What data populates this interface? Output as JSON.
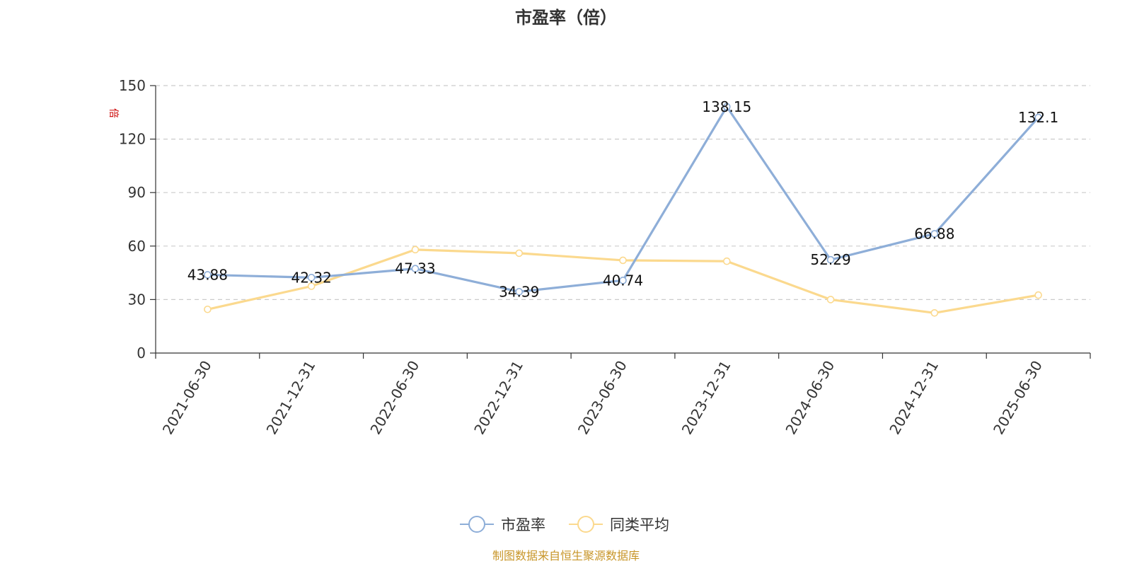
{
  "chart_data": {
    "type": "line",
    "title": "市盈率（倍）",
    "ylabel": "倍",
    "ylim": [
      0,
      150
    ],
    "yticks": [
      0,
      30,
      60,
      90,
      120,
      150
    ],
    "grid": true,
    "legend_position": "bottom-center",
    "categories": [
      "2021-06-30",
      "2021-12-31",
      "2022-06-30",
      "2022-12-31",
      "2023-06-30",
      "2023-12-31",
      "2024-06-30",
      "2024-12-31",
      "2025-06-30"
    ],
    "series": [
      {
        "name": "市盈率",
        "color": "#8eaed8",
        "values": [
          43.88,
          42.32,
          47.33,
          34.39,
          40.74,
          138.15,
          52.29,
          66.88,
          132.1
        ],
        "labels": [
          "43.88",
          "42.32",
          "47.33",
          "34.39",
          "40.74",
          "138.15",
          "52.29",
          "66.88",
          "132.1"
        ]
      },
      {
        "name": "同类平均",
        "color": "#fbd98e",
        "values": [
          24.5,
          37.5,
          58,
          56,
          52,
          51.5,
          30,
          22.5,
          32.5
        ]
      }
    ]
  },
  "footer": {
    "source": "制图数据来自恒生聚源数据库"
  }
}
